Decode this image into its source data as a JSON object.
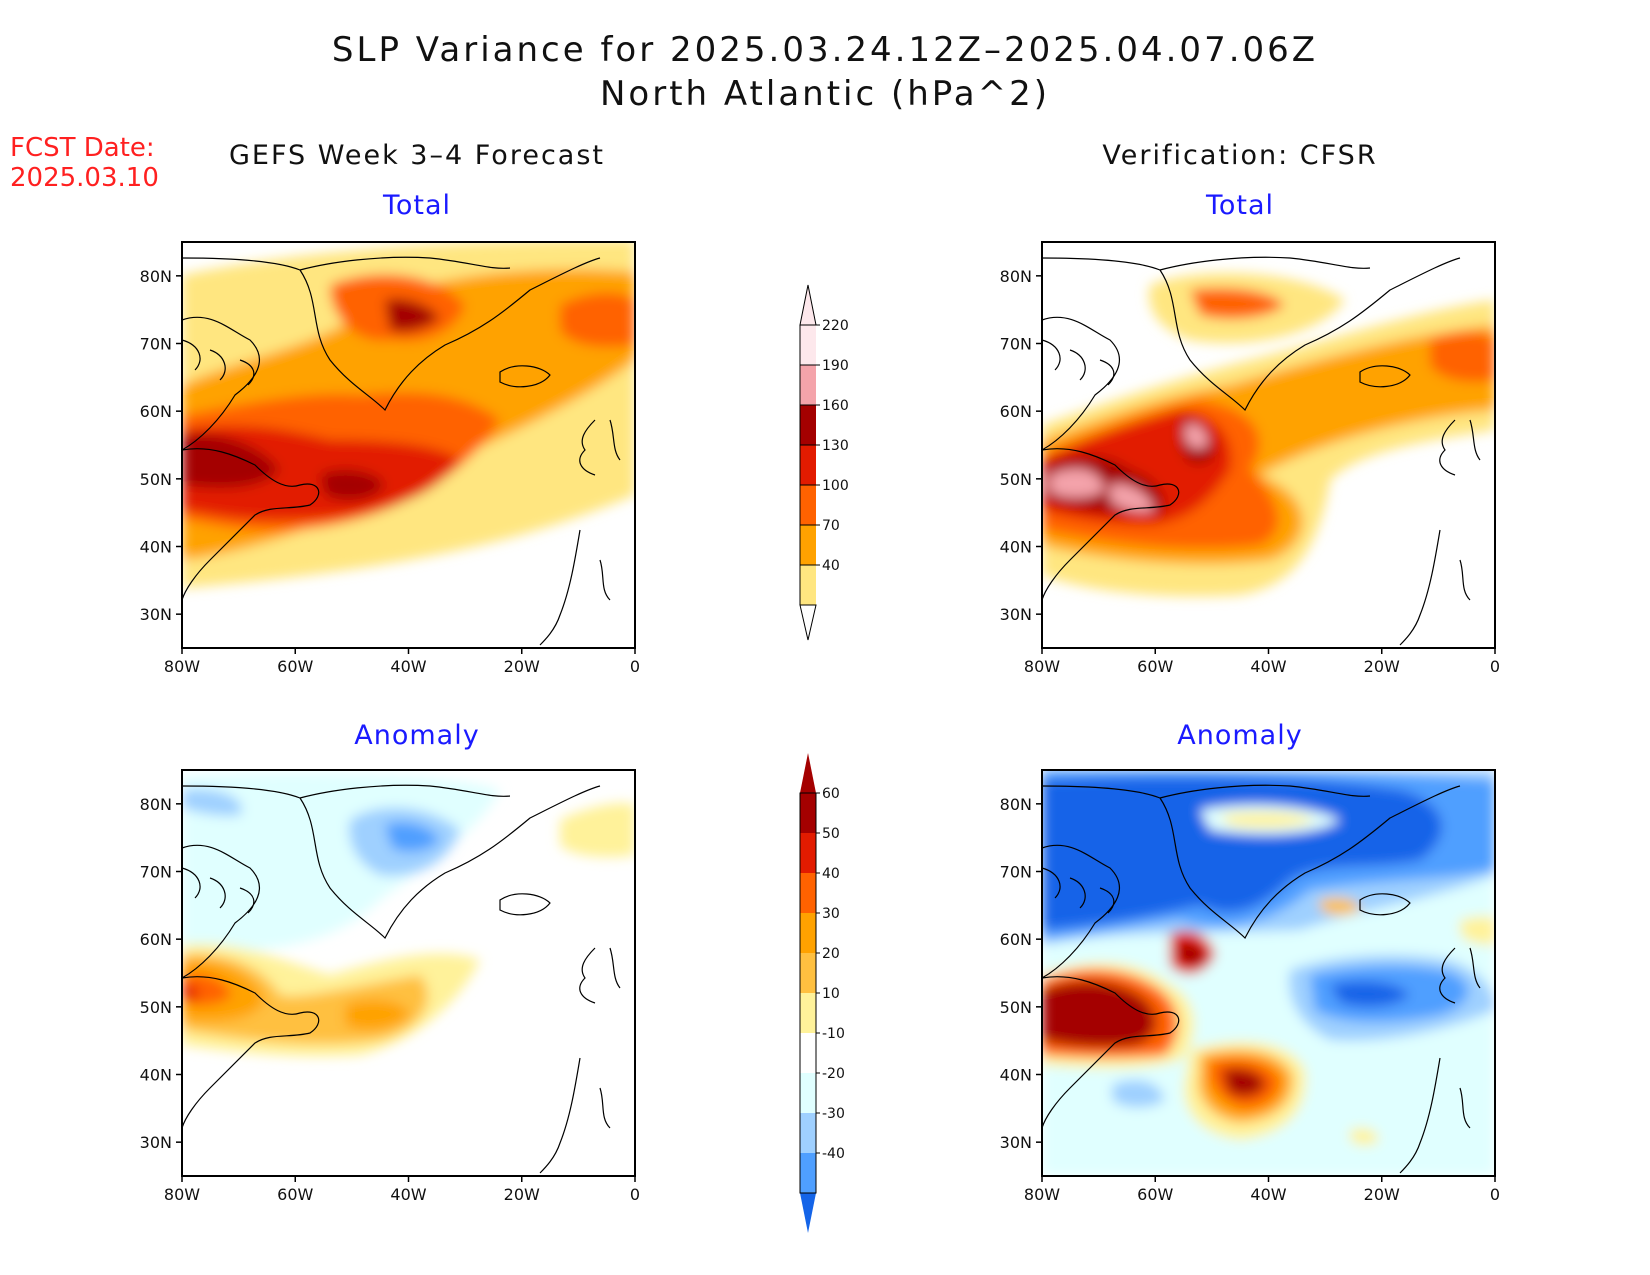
{
  "title": {
    "line1": "SLP Variance for 2025.03.24.12Z–2025.04.07.06Z",
    "line2": "North Atlantic (hPa^2)"
  },
  "fcst_date": {
    "label": "FCST Date:",
    "value": "2025.03.10"
  },
  "columns": {
    "left": "GEFS Week 3–4 Forecast",
    "right": "Verification: CFSR"
  },
  "panels": {
    "total_label": "Total",
    "anomaly_label": "Anomaly"
  },
  "axes": {
    "lat_ticks": [
      "80N",
      "70N",
      "60N",
      "50N",
      "40N",
      "30N"
    ],
    "lon_ticks": [
      "80W",
      "60W",
      "40W",
      "20W",
      "0"
    ]
  },
  "colorbar_total": {
    "levels": [
      "220",
      "190",
      "160",
      "130",
      "100",
      "70",
      "40"
    ],
    "colors": [
      "#fde8ec",
      "#f4a3aa",
      "#a40000",
      "#e21b00",
      "#ff6200",
      "#ffa200",
      "#ffe680"
    ]
  },
  "colorbar_anomaly": {
    "levels": [
      "60",
      "50",
      "40",
      "30",
      "20",
      "10",
      "-10",
      "-20",
      "-30",
      "-40"
    ],
    "colors": [
      "#a40000",
      "#e21b00",
      "#ff6200",
      "#ffa200",
      "#ffc040",
      "#fff29a",
      "#ffffff",
      "#e0ffff",
      "#9fd0ff",
      "#4f9fff",
      "#1464e8"
    ]
  },
  "chart_data": {
    "type": "heatmap",
    "region": "North Atlantic",
    "lon_range": [
      -80,
      0
    ],
    "lat_range": [
      25,
      85
    ],
    "units": "hPa^2"
  }
}
